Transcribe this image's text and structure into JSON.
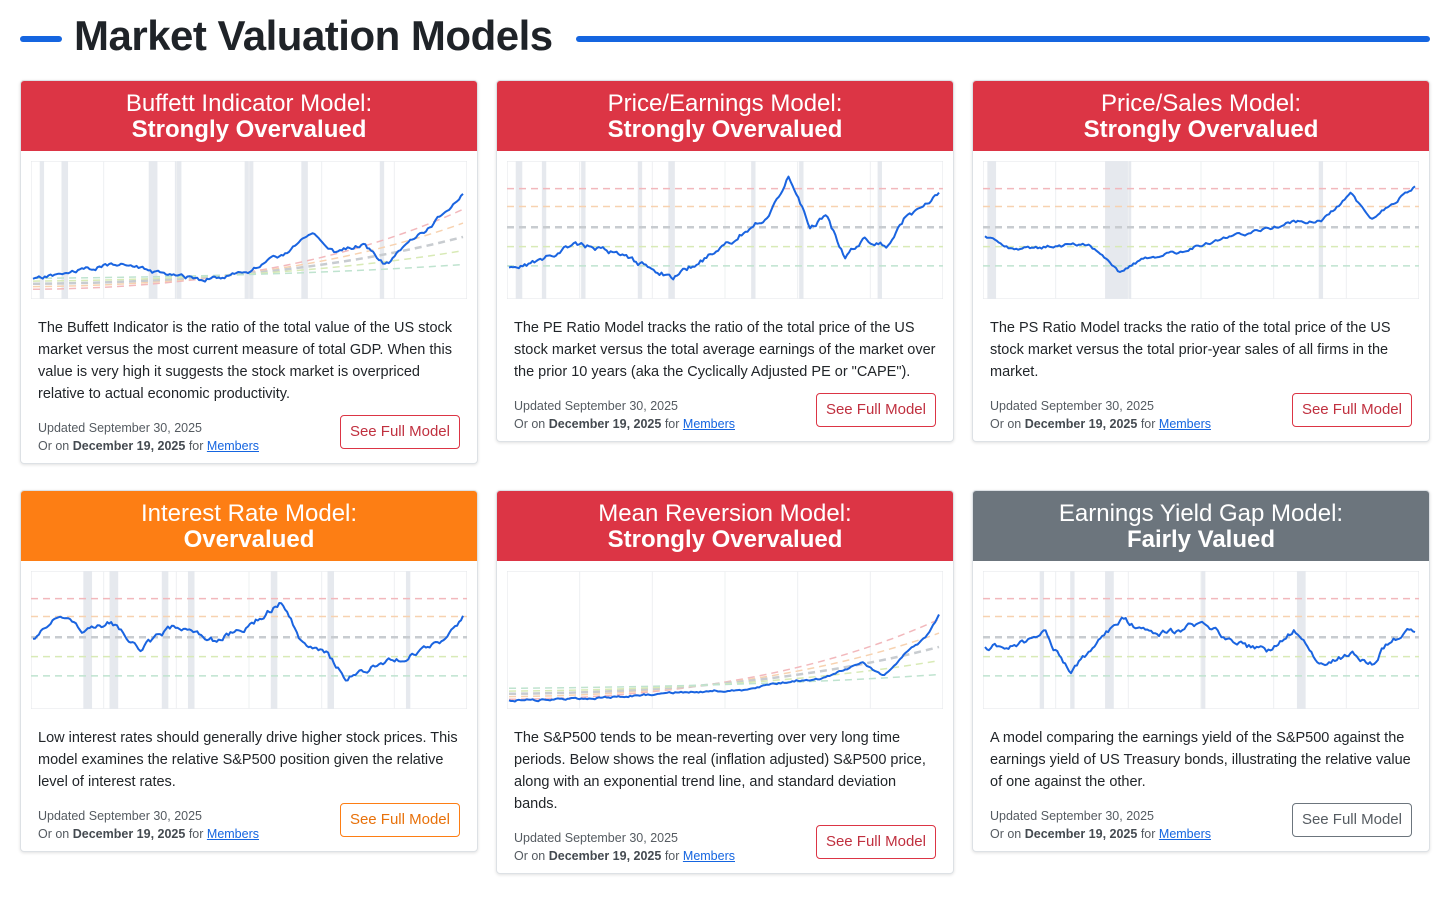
{
  "page": {
    "title": "Market Valuation Models"
  },
  "colors": {
    "accent": "#1565e0",
    "red": "#dc3545",
    "orange": "#fd7e14",
    "gray": "#6c757d",
    "line": "#1a64e0"
  },
  "common": {
    "updated_prefix": "Updated September 30, 2025",
    "or_on": "Or on",
    "members_date": "December 19, 2025",
    "for": "for",
    "members_link": "Members",
    "button_label": "See Full Model"
  },
  "cards": [
    {
      "name": "Buffett Indicator Model:",
      "verdict": "Strongly Overvalued",
      "description": "The Buffett Indicator is the ratio of the total value of the US stock market versus the most current measure of total GDP. When this value is very high it suggests the stock market is overpriced relative to actual economic productivity."
    },
    {
      "name": "Price/Earnings Model:",
      "verdict": "Strongly Overvalued",
      "description": "The PE Ratio Model tracks the ratio of the total price of the US stock market versus the total average earnings of the market over the prior 10 years (aka the Cyclically Adjusted PE or \"CAPE\")."
    },
    {
      "name": "Price/Sales Model:",
      "verdict": "Strongly Overvalued",
      "description": "The PS Ratio Model tracks the ratio of the total price of the US stock market versus the total prior-year sales of all firms in the market."
    },
    {
      "name": "Interest Rate Model:",
      "verdict": "Overvalued",
      "description": "Low interest rates should generally drive higher stock prices. This model examines the relative S&P500 position given the relative level of interest rates."
    },
    {
      "name": "Mean Reversion Model:",
      "verdict": "Strongly Overvalued",
      "description": "The S&P500 tends to be mean-reverting over very long time periods. Below shows the real (inflation adjusted) S&P500 price, along with an exponential trend line, and standard deviation bands."
    },
    {
      "name": "Earnings Yield Gap Model:",
      "verdict": "Fairly Valued",
      "description": "A model comparing the earnings yield of the S&P500 against the earnings yield of US Treasury bonds, illustrating the relative value of one against the other."
    }
  ]
}
